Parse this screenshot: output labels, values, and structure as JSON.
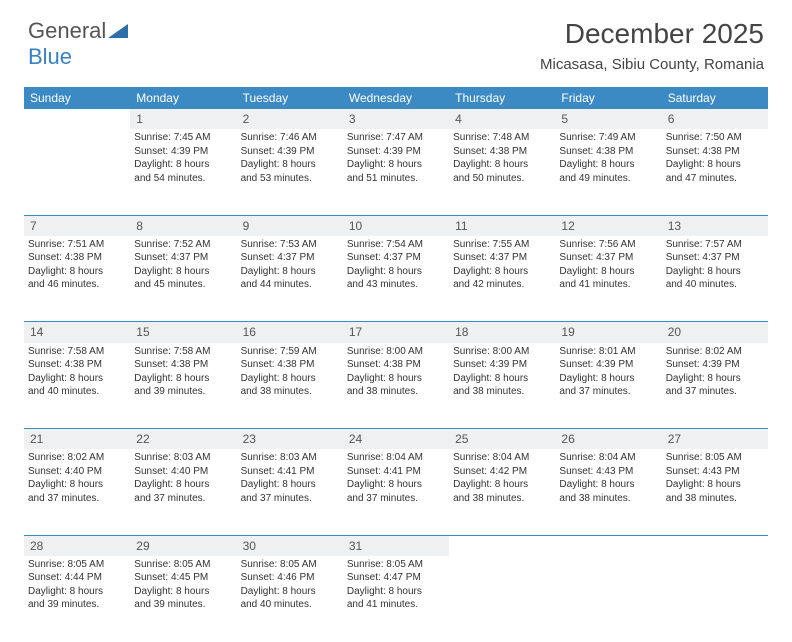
{
  "brand": {
    "line1": "General",
    "line2": "Blue"
  },
  "title": {
    "month": "December 2025",
    "location": "Micasasa, Sibiu County, Romania"
  },
  "colors": {
    "header_bg": "#3b8ac4",
    "header_text": "#ffffff",
    "daynum_bg": "#eef0f1",
    "rule": "#3b8ac4"
  },
  "weekdays": [
    "Sunday",
    "Monday",
    "Tuesday",
    "Wednesday",
    "Thursday",
    "Friday",
    "Saturday"
  ],
  "weeks": [
    [
      {
        "day": "",
        "lines": []
      },
      {
        "day": "1",
        "lines": [
          "Sunrise: 7:45 AM",
          "Sunset: 4:39 PM",
          "Daylight: 8 hours",
          "and 54 minutes."
        ]
      },
      {
        "day": "2",
        "lines": [
          "Sunrise: 7:46 AM",
          "Sunset: 4:39 PM",
          "Daylight: 8 hours",
          "and 53 minutes."
        ]
      },
      {
        "day": "3",
        "lines": [
          "Sunrise: 7:47 AM",
          "Sunset: 4:39 PM",
          "Daylight: 8 hours",
          "and 51 minutes."
        ]
      },
      {
        "day": "4",
        "lines": [
          "Sunrise: 7:48 AM",
          "Sunset: 4:38 PM",
          "Daylight: 8 hours",
          "and 50 minutes."
        ]
      },
      {
        "day": "5",
        "lines": [
          "Sunrise: 7:49 AM",
          "Sunset: 4:38 PM",
          "Daylight: 8 hours",
          "and 49 minutes."
        ]
      },
      {
        "day": "6",
        "lines": [
          "Sunrise: 7:50 AM",
          "Sunset: 4:38 PM",
          "Daylight: 8 hours",
          "and 47 minutes."
        ]
      }
    ],
    [
      {
        "day": "7",
        "lines": [
          "Sunrise: 7:51 AM",
          "Sunset: 4:38 PM",
          "Daylight: 8 hours",
          "and 46 minutes."
        ]
      },
      {
        "day": "8",
        "lines": [
          "Sunrise: 7:52 AM",
          "Sunset: 4:37 PM",
          "Daylight: 8 hours",
          "and 45 minutes."
        ]
      },
      {
        "day": "9",
        "lines": [
          "Sunrise: 7:53 AM",
          "Sunset: 4:37 PM",
          "Daylight: 8 hours",
          "and 44 minutes."
        ]
      },
      {
        "day": "10",
        "lines": [
          "Sunrise: 7:54 AM",
          "Sunset: 4:37 PM",
          "Daylight: 8 hours",
          "and 43 minutes."
        ]
      },
      {
        "day": "11",
        "lines": [
          "Sunrise: 7:55 AM",
          "Sunset: 4:37 PM",
          "Daylight: 8 hours",
          "and 42 minutes."
        ]
      },
      {
        "day": "12",
        "lines": [
          "Sunrise: 7:56 AM",
          "Sunset: 4:37 PM",
          "Daylight: 8 hours",
          "and 41 minutes."
        ]
      },
      {
        "day": "13",
        "lines": [
          "Sunrise: 7:57 AM",
          "Sunset: 4:37 PM",
          "Daylight: 8 hours",
          "and 40 minutes."
        ]
      }
    ],
    [
      {
        "day": "14",
        "lines": [
          "Sunrise: 7:58 AM",
          "Sunset: 4:38 PM",
          "Daylight: 8 hours",
          "and 40 minutes."
        ]
      },
      {
        "day": "15",
        "lines": [
          "Sunrise: 7:58 AM",
          "Sunset: 4:38 PM",
          "Daylight: 8 hours",
          "and 39 minutes."
        ]
      },
      {
        "day": "16",
        "lines": [
          "Sunrise: 7:59 AM",
          "Sunset: 4:38 PM",
          "Daylight: 8 hours",
          "and 38 minutes."
        ]
      },
      {
        "day": "17",
        "lines": [
          "Sunrise: 8:00 AM",
          "Sunset: 4:38 PM",
          "Daylight: 8 hours",
          "and 38 minutes."
        ]
      },
      {
        "day": "18",
        "lines": [
          "Sunrise: 8:00 AM",
          "Sunset: 4:39 PM",
          "Daylight: 8 hours",
          "and 38 minutes."
        ]
      },
      {
        "day": "19",
        "lines": [
          "Sunrise: 8:01 AM",
          "Sunset: 4:39 PM",
          "Daylight: 8 hours",
          "and 37 minutes."
        ]
      },
      {
        "day": "20",
        "lines": [
          "Sunrise: 8:02 AM",
          "Sunset: 4:39 PM",
          "Daylight: 8 hours",
          "and 37 minutes."
        ]
      }
    ],
    [
      {
        "day": "21",
        "lines": [
          "Sunrise: 8:02 AM",
          "Sunset: 4:40 PM",
          "Daylight: 8 hours",
          "and 37 minutes."
        ]
      },
      {
        "day": "22",
        "lines": [
          "Sunrise: 8:03 AM",
          "Sunset: 4:40 PM",
          "Daylight: 8 hours",
          "and 37 minutes."
        ]
      },
      {
        "day": "23",
        "lines": [
          "Sunrise: 8:03 AM",
          "Sunset: 4:41 PM",
          "Daylight: 8 hours",
          "and 37 minutes."
        ]
      },
      {
        "day": "24",
        "lines": [
          "Sunrise: 8:04 AM",
          "Sunset: 4:41 PM",
          "Daylight: 8 hours",
          "and 37 minutes."
        ]
      },
      {
        "day": "25",
        "lines": [
          "Sunrise: 8:04 AM",
          "Sunset: 4:42 PM",
          "Daylight: 8 hours",
          "and 38 minutes."
        ]
      },
      {
        "day": "26",
        "lines": [
          "Sunrise: 8:04 AM",
          "Sunset: 4:43 PM",
          "Daylight: 8 hours",
          "and 38 minutes."
        ]
      },
      {
        "day": "27",
        "lines": [
          "Sunrise: 8:05 AM",
          "Sunset: 4:43 PM",
          "Daylight: 8 hours",
          "and 38 minutes."
        ]
      }
    ],
    [
      {
        "day": "28",
        "lines": [
          "Sunrise: 8:05 AM",
          "Sunset: 4:44 PM",
          "Daylight: 8 hours",
          "and 39 minutes."
        ]
      },
      {
        "day": "29",
        "lines": [
          "Sunrise: 8:05 AM",
          "Sunset: 4:45 PM",
          "Daylight: 8 hours",
          "and 39 minutes."
        ]
      },
      {
        "day": "30",
        "lines": [
          "Sunrise: 8:05 AM",
          "Sunset: 4:46 PM",
          "Daylight: 8 hours",
          "and 40 minutes."
        ]
      },
      {
        "day": "31",
        "lines": [
          "Sunrise: 8:05 AM",
          "Sunset: 4:47 PM",
          "Daylight: 8 hours",
          "and 41 minutes."
        ]
      },
      {
        "day": "",
        "lines": []
      },
      {
        "day": "",
        "lines": []
      },
      {
        "day": "",
        "lines": []
      }
    ]
  ]
}
